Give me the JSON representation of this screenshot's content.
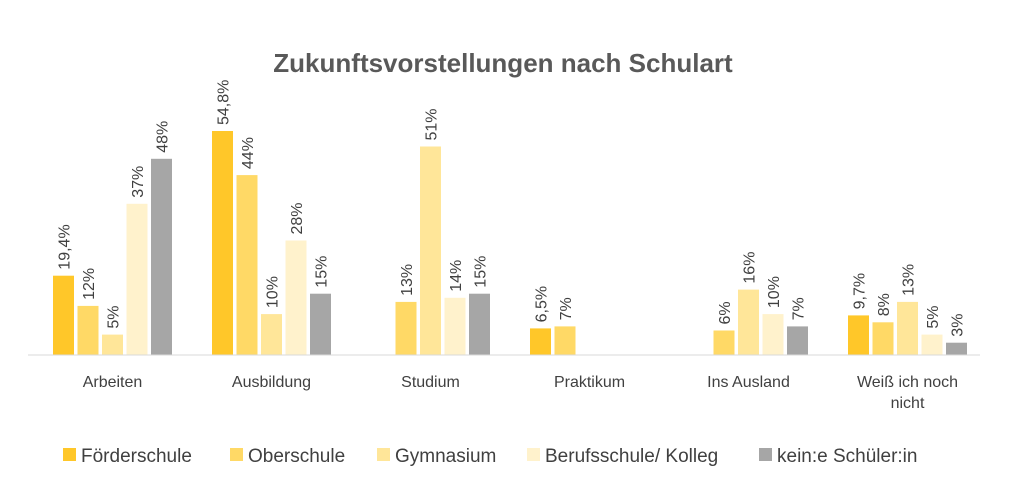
{
  "chart_data": {
    "type": "bar",
    "title": "Zukunftsvorstellungen nach Schulart",
    "xlabel": "",
    "ylabel": "",
    "ylim": [
      0,
      60
    ],
    "grid": false,
    "legend_position": "bottom",
    "categories": [
      [
        "Arbeiten"
      ],
      [
        "Ausbildung"
      ],
      [
        "Studium"
      ],
      [
        "Praktikum"
      ],
      [
        "Ins Ausland"
      ],
      [
        "Weiß ich noch",
        "nicht"
      ]
    ],
    "series": [
      {
        "name": "Förderschule",
        "color": "#FFC729",
        "values": [
          19.4,
          54.8,
          null,
          6.5,
          null,
          9.7
        ],
        "labels": [
          "19,4%",
          "54,8%",
          null,
          "6,5%",
          null,
          "9,7%"
        ]
      },
      {
        "name": "Oberschule",
        "color": "#FFD966",
        "values": [
          12,
          44,
          13,
          7,
          6,
          8
        ],
        "labels": [
          "12%",
          "44%",
          "13%",
          "7%",
          "6%",
          "8%"
        ]
      },
      {
        "name": "Gymnasium",
        "color": "#FFE699",
        "values": [
          5,
          10,
          51,
          null,
          16,
          13
        ],
        "labels": [
          "5%",
          "10%",
          "51%",
          null,
          "16%",
          "13%"
        ]
      },
      {
        "name": "Berufsschule/ Kolleg",
        "color": "#FFF2CC",
        "values": [
          37,
          28,
          14,
          null,
          10,
          5
        ],
        "labels": [
          "37%",
          "28%",
          "14%",
          null,
          "10%",
          "5%"
        ]
      },
      {
        "name": "kein:e Schüler:in",
        "color": "#A6A6A6",
        "values": [
          48,
          15,
          15,
          null,
          7,
          3
        ],
        "labels": [
          "48%",
          "15%",
          "15%",
          null,
          "7%",
          "3%"
        ]
      }
    ]
  }
}
